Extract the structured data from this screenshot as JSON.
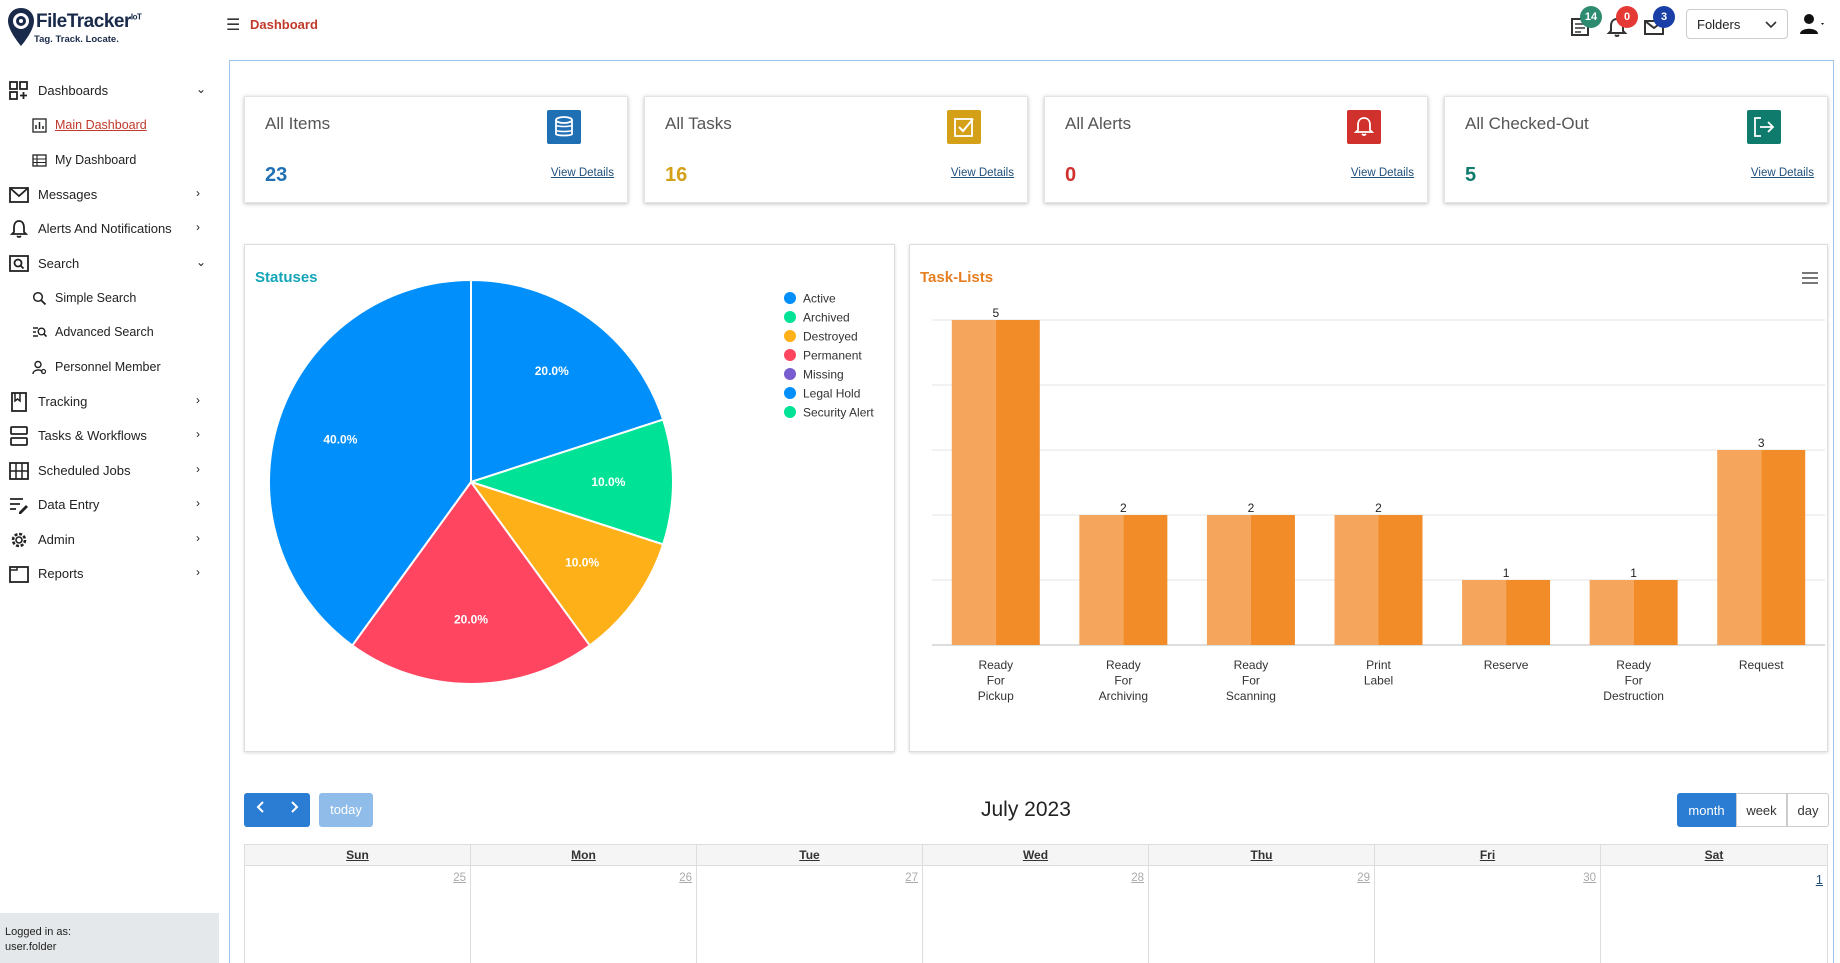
{
  "header": {
    "logo_name": "FileTracker",
    "logo_sup": "IoT",
    "logo_tagline": "Tag. Track. Locate.",
    "breadcrumb": "Dashboard",
    "tasks_badge": "14",
    "alerts_badge": "0",
    "messages_badge": "3",
    "folders_select": "Folders",
    "colors": {
      "tasks_badge": "#2e8b6f",
      "alerts_badge": "#e53935",
      "messages_badge": "#1a3fa6"
    }
  },
  "sidebar": {
    "items": [
      {
        "label": "Dashboards",
        "icon": "dashboard-grid-icon",
        "expanded": true
      },
      {
        "label": "Main Dashboard",
        "icon": "chart-icon",
        "sub": true,
        "active": true
      },
      {
        "label": "My Dashboard",
        "icon": "table-icon",
        "sub": true
      },
      {
        "label": "Messages",
        "icon": "envelope-icon"
      },
      {
        "label": "Alerts And Notifications",
        "icon": "bell-icon"
      },
      {
        "label": "Search",
        "icon": "search-box-icon",
        "expanded": true
      },
      {
        "label": "Simple Search",
        "icon": "magnifier-icon",
        "sub": true
      },
      {
        "label": "Advanced Search",
        "icon": "advanced-search-icon",
        "sub": true
      },
      {
        "label": "Personnel Member",
        "icon": "person-search-icon",
        "sub": true
      },
      {
        "label": "Tracking",
        "icon": "bookmark-icon"
      },
      {
        "label": "Tasks & Workflows",
        "icon": "workflow-icon"
      },
      {
        "label": "Scheduled Jobs",
        "icon": "grid-icon"
      },
      {
        "label": "Data Entry",
        "icon": "edit-list-icon"
      },
      {
        "label": "Admin",
        "icon": "gear-icon"
      },
      {
        "label": "Reports",
        "icon": "folder-icon"
      }
    ],
    "logged_in_label": "Logged in as:",
    "logged_in_user": "user.folder"
  },
  "cards": [
    {
      "title": "All Items",
      "value": "23",
      "link": "View Details",
      "color": "#1f6fb5",
      "icon": "database-icon"
    },
    {
      "title": "All Tasks",
      "value": "16",
      "link": "View Details",
      "color": "#d4a017",
      "icon": "checkbox-icon"
    },
    {
      "title": "All Alerts",
      "value": "0",
      "link": "View Details",
      "color": "#d0312d",
      "icon": "bell-icon"
    },
    {
      "title": "All Checked-Out",
      "value": "5",
      "link": "View Details",
      "color": "#0f7b6c",
      "icon": "sign-out-icon"
    }
  ],
  "chart_data": [
    {
      "type": "pie",
      "title": "Statuses",
      "legend": [
        "Active",
        "Archived",
        "Destroyed",
        "Permanent",
        "Missing",
        "Legal Hold",
        "Security Alert"
      ],
      "legend_colors": [
        "#008ffb",
        "#00e396",
        "#feb019",
        "#ff4560",
        "#775dd0",
        "#008ffb",
        "#00e396"
      ],
      "legend_position": "top-right",
      "slices": [
        {
          "label": "20.0%",
          "value": 20.0,
          "color": "#008ffb"
        },
        {
          "label": "10.0%",
          "value": 10.0,
          "color": "#00e396"
        },
        {
          "label": "10.0%",
          "value": 10.0,
          "color": "#feb019"
        },
        {
          "label": "20.0%",
          "value": 20.0,
          "color": "#ff4560"
        },
        {
          "label": "40.0%",
          "value": 40.0,
          "color": "#008ffb"
        }
      ]
    },
    {
      "type": "bar",
      "title": "Task-Lists",
      "categories": [
        [
          "Ready",
          "For",
          "Pickup"
        ],
        [
          "Ready",
          "For",
          "Archiving"
        ],
        [
          "Ready",
          "For",
          "Scanning"
        ],
        [
          "Print",
          "Label"
        ],
        [
          "Reserve"
        ],
        [
          "Ready",
          "For",
          "Destruction"
        ],
        [
          "Request"
        ]
      ],
      "values": [
        5,
        2,
        2,
        2,
        1,
        1,
        3
      ],
      "ylim": [
        0,
        5
      ],
      "grid": true,
      "color": "#f28c28"
    }
  ],
  "calendar": {
    "title": "July 2023",
    "today_label": "today",
    "views": [
      "month",
      "week",
      "day"
    ],
    "active_view": "month",
    "days": [
      "Sun",
      "Mon",
      "Tue",
      "Wed",
      "Thu",
      "Fri",
      "Sat"
    ],
    "first_row": [
      "25",
      "26",
      "27",
      "28",
      "29",
      "30",
      "1"
    ]
  }
}
